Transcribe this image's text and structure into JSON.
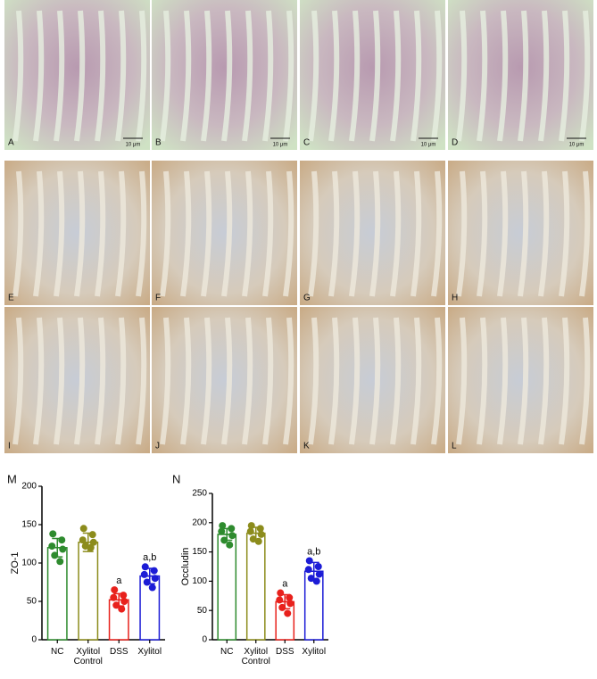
{
  "panels": [
    {
      "label": "A",
      "scale_bar": "10 μm"
    },
    {
      "label": "B",
      "scale_bar": "10 μm"
    },
    {
      "label": "C",
      "scale_bar": "10 μm"
    },
    {
      "label": "D",
      "scale_bar": "10 μm"
    },
    {
      "label": "E"
    },
    {
      "label": "F"
    },
    {
      "label": "G"
    },
    {
      "label": "H"
    },
    {
      "label": "I"
    },
    {
      "label": "J"
    },
    {
      "label": "K"
    },
    {
      "label": "L"
    }
  ],
  "chart_data": [
    {
      "type": "bar",
      "panel": "M",
      "y_label": "ZO-1",
      "categories": [
        "NC",
        "Xylitol Control",
        "DSS",
        "Xylitol"
      ],
      "values": [
        120,
        127,
        52,
        83
      ],
      "errors": [
        12,
        12,
        8,
        10
      ],
      "points": [
        [
          138,
          130,
          122,
          118,
          110,
          102
        ],
        [
          145,
          137,
          130,
          127,
          122,
          120
        ],
        [
          65,
          58,
          55,
          50,
          45,
          40
        ],
        [
          95,
          90,
          85,
          80,
          75,
          68
        ]
      ],
      "colors": [
        "#2e8b2e",
        "#8c8c1c",
        "#e8211c",
        "#1c1cd6"
      ],
      "annotations": [
        null,
        null,
        "a",
        "a,b"
      ],
      "ylim": [
        0,
        200
      ],
      "yticks": [
        0,
        50,
        100,
        150,
        200
      ]
    },
    {
      "type": "bar",
      "panel": "N",
      "y_label": "Occludin",
      "categories": [
        "NC",
        "Xylitol Control",
        "DSS",
        "Xylitol"
      ],
      "values": [
        180,
        182,
        65,
        117
      ],
      "errors": [
        10,
        10,
        12,
        15
      ],
      "points": [
        [
          195,
          190,
          185,
          178,
          170,
          162
        ],
        [
          195,
          190,
          185,
          180,
          172,
          168
        ],
        [
          80,
          72,
          68,
          62,
          55,
          45
        ],
        [
          135,
          125,
          120,
          112,
          105,
          100
        ]
      ],
      "colors": [
        "#2e8b2e",
        "#8c8c1c",
        "#e8211c",
        "#1c1cd6"
      ],
      "annotations": [
        null,
        null,
        "a",
        "a,b"
      ],
      "ylim": [
        0,
        250
      ],
      "yticks": [
        0,
        50,
        100,
        150,
        200,
        250
      ]
    }
  ]
}
